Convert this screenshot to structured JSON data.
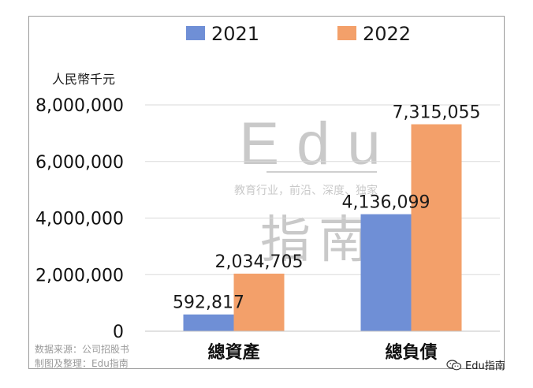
{
  "chart_data": {
    "type": "bar",
    "categories": [
      "總資產",
      "總負債"
    ],
    "series": [
      {
        "name": "2021",
        "values": [
          592817,
          4136099
        ],
        "color": "#6f8fd6"
      },
      {
        "name": "2022",
        "values": [
          2034705,
          7315055
        ],
        "color": "#f3a06a"
      }
    ],
    "data_labels": [
      [
        "592,817",
        "4,136,099"
      ],
      [
        "2,034,705",
        "7,315,055"
      ]
    ],
    "title": "",
    "ylabel": "人民幣千元",
    "ylim": [
      0,
      8000000
    ],
    "yticks": [
      0,
      2000000,
      4000000,
      6000000,
      8000000
    ],
    "ytick_labels": [
      "0",
      "2,000,000",
      "4,000,000",
      "6,000,000",
      "8,000,000"
    ],
    "grid": true,
    "legend_placement": "top-center"
  },
  "watermark": {
    "brand": "Edu",
    "tagline": "教育行业，前沿、深度、独家",
    "chinese": "指南"
  },
  "footer": {
    "source": "数据来源：公司招股书",
    "made_by": "制图及整理：Edu指南"
  },
  "brand_label": "Edu指南",
  "brand_icon": "wechat-icon"
}
